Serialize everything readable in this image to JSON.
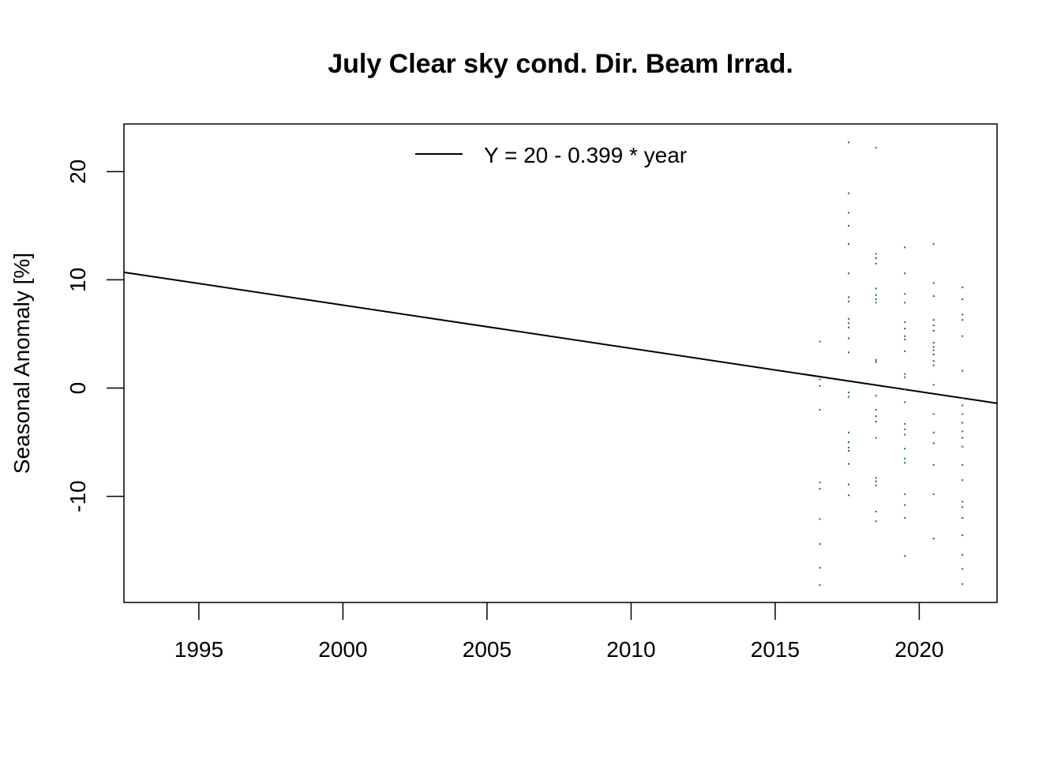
{
  "chart_data": {
    "type": "scatter",
    "title": "July Clear sky cond. Dir. Beam Irrad.",
    "xlabel": "",
    "ylabel": "Seasonal Anomaly [%]",
    "xlim": [
      1992.4,
      2022.7
    ],
    "ylim": [
      -19.8,
      24.4
    ],
    "x_ticks": [
      1995,
      2000,
      2005,
      2010,
      2015,
      2020
    ],
    "y_ticks": [
      -10,
      0,
      10,
      20
    ],
    "grid": false,
    "legend": {
      "position": "top-center",
      "entries": [
        "Y = 20 - 0.399 * year"
      ]
    },
    "trend_line": {
      "label": "Y = 20 - 0.399 * year",
      "x": [
        1992.4,
        2022.7
      ],
      "y": [
        10.7,
        -1.4
      ],
      "color": "#000000"
    },
    "point_color": "#1f5f7a",
    "series": [
      {
        "points": [
          [
            2016.55,
            4.3
          ],
          [
            2016.55,
            0.8
          ],
          [
            2016.55,
            0.2
          ],
          [
            2016.55,
            -2.0
          ],
          [
            2016.55,
            -8.7
          ],
          [
            2016.55,
            -9.3
          ],
          [
            2016.55,
            -12.1
          ],
          [
            2016.55,
            -14.4
          ],
          [
            2016.55,
            -16.6
          ],
          [
            2016.55,
            -18.2
          ],
          [
            2017.55,
            22.7
          ],
          [
            2017.55,
            18.0
          ],
          [
            2017.55,
            16.2
          ],
          [
            2017.55,
            15.0
          ],
          [
            2017.55,
            13.3
          ],
          [
            2017.55,
            10.6
          ],
          [
            2017.55,
            8.4
          ],
          [
            2017.55,
            8.0
          ],
          [
            2017.55,
            6.4
          ],
          [
            2017.55,
            6.0
          ],
          [
            2017.55,
            5.6
          ],
          [
            2017.55,
            4.6
          ],
          [
            2017.55,
            3.3
          ],
          [
            2017.55,
            -0.4
          ],
          [
            2017.55,
            -0.8
          ],
          [
            2017.55,
            -4.1
          ],
          [
            2017.55,
            -5.0
          ],
          [
            2017.55,
            -5.5
          ],
          [
            2017.55,
            -5.8
          ],
          [
            2017.55,
            -7.0
          ],
          [
            2017.55,
            -8.9
          ],
          [
            2017.55,
            -9.9
          ],
          [
            2018.5,
            22.2
          ],
          [
            2018.5,
            12.4
          ],
          [
            2018.5,
            12.0
          ],
          [
            2018.5,
            11.5
          ],
          [
            2018.5,
            9.2
          ],
          [
            2018.5,
            8.6
          ],
          [
            2018.5,
            8.2
          ],
          [
            2018.5,
            7.9
          ],
          [
            2018.5,
            2.6
          ],
          [
            2018.5,
            2.4
          ],
          [
            2018.5,
            -0.7
          ],
          [
            2018.5,
            -2.0
          ],
          [
            2018.5,
            -2.6
          ],
          [
            2018.5,
            -3.1
          ],
          [
            2018.5,
            -4.6
          ],
          [
            2018.5,
            -8.3
          ],
          [
            2018.5,
            -8.6
          ],
          [
            2018.5,
            -9.0
          ],
          [
            2018.5,
            -11.4
          ],
          [
            2018.5,
            -12.3
          ],
          [
            2019.5,
            13.0
          ],
          [
            2019.5,
            10.6
          ],
          [
            2019.5,
            8.7
          ],
          [
            2019.5,
            7.9
          ],
          [
            2019.5,
            6.1
          ],
          [
            2019.5,
            5.5
          ],
          [
            2019.5,
            4.8
          ],
          [
            2019.5,
            4.5
          ],
          [
            2019.5,
            3.4
          ],
          [
            2019.5,
            1.3
          ],
          [
            2019.5,
            1.0
          ],
          [
            2019.5,
            -0.1
          ],
          [
            2019.5,
            -1.3
          ],
          [
            2019.5,
            -3.3
          ],
          [
            2019.5,
            -3.8
          ],
          [
            2019.5,
            -4.3
          ],
          [
            2019.5,
            -5.6
          ],
          [
            2019.5,
            -6.5
          ],
          [
            2019.5,
            -6.9
          ],
          [
            2019.5,
            -9.8
          ],
          [
            2019.5,
            -10.8
          ],
          [
            2019.5,
            -12.0
          ],
          [
            2019.5,
            -15.5
          ],
          [
            2020.5,
            13.3
          ],
          [
            2020.5,
            9.7
          ],
          [
            2020.5,
            8.5
          ],
          [
            2020.5,
            6.3
          ],
          [
            2020.5,
            5.8
          ],
          [
            2020.5,
            5.3
          ],
          [
            2020.5,
            4.2
          ],
          [
            2020.5,
            3.8
          ],
          [
            2020.5,
            3.5
          ],
          [
            2020.5,
            3.1
          ],
          [
            2020.5,
            2.5
          ],
          [
            2020.5,
            2.1
          ],
          [
            2020.5,
            0.3
          ],
          [
            2020.5,
            -2.4
          ],
          [
            2020.5,
            -4.1
          ],
          [
            2020.5,
            -5.1
          ],
          [
            2020.5,
            -7.1
          ],
          [
            2020.5,
            -9.8
          ],
          [
            2020.5,
            -13.9
          ],
          [
            2021.5,
            9.3
          ],
          [
            2021.5,
            8.2
          ],
          [
            2021.5,
            6.8
          ],
          [
            2021.5,
            6.3
          ],
          [
            2021.5,
            4.8
          ],
          [
            2021.5,
            1.6
          ],
          [
            2021.5,
            -0.9
          ],
          [
            2021.5,
            -1.6
          ],
          [
            2021.5,
            -2.4
          ],
          [
            2021.5,
            -3.2
          ],
          [
            2021.5,
            -4.0
          ],
          [
            2021.5,
            -4.6
          ],
          [
            2021.5,
            -5.4
          ],
          [
            2021.5,
            -7.1
          ],
          [
            2021.5,
            -8.5
          ],
          [
            2021.5,
            -10.5
          ],
          [
            2021.5,
            -11.0
          ],
          [
            2021.5,
            -12.0
          ],
          [
            2021.5,
            -13.6
          ],
          [
            2021.5,
            -15.4
          ],
          [
            2021.5,
            -16.7
          ],
          [
            2021.5,
            -18.1
          ]
        ]
      }
    ]
  }
}
